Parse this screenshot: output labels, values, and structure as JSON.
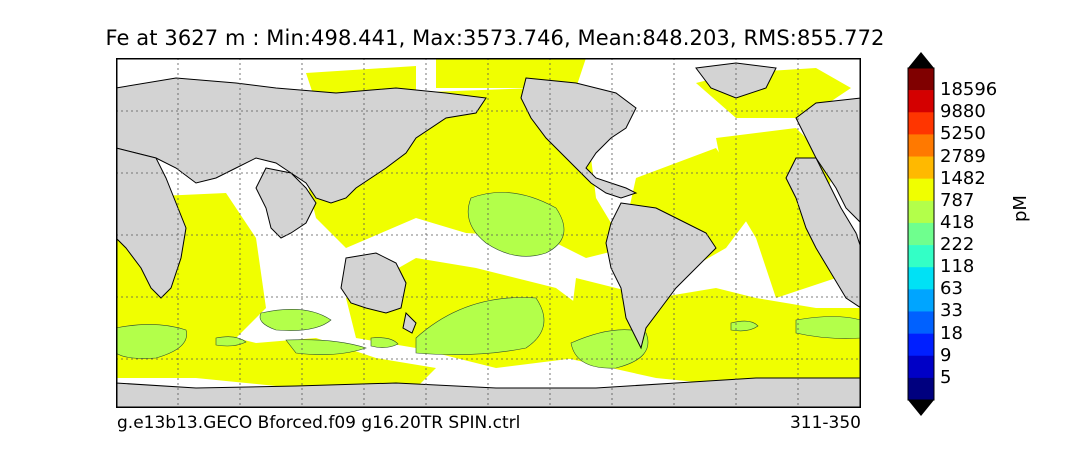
{
  "title": "Fe at 3627 m : Min:498.441, Max:3573.746, Mean:848.203, RMS:855.772",
  "footer": {
    "run_name": "g.e13b13.GECO Bforced.f09 g16.20TR SPIN.ctrl",
    "years": "311-350"
  },
  "colorbar": {
    "units": "pM",
    "levels": [
      "18596",
      "9880",
      "5250",
      "2789",
      "1482",
      "787",
      "418",
      "222",
      "118",
      "63",
      "33",
      "18",
      "9",
      "5"
    ],
    "colors": [
      "#800000",
      "#d40000",
      "#ff3500",
      "#ff7900",
      "#ffb900",
      "#f0ff00",
      "#b3ff4a",
      "#6fff8e",
      "#33ffc6",
      "#00e1f5",
      "#00a5ff",
      "#0061ff",
      "#001fff",
      "#0000c6",
      "#00007f"
    ],
    "extend_max_color": "#000000",
    "extend_min_color": "#000000"
  },
  "map": {
    "land_color": "#d3d3d3",
    "ocean_nodata_color": "#ffffff",
    "dominant_field_color": "#f0ff00",
    "low_patch_color": "#b3ff4a",
    "gridlines": "dotted"
  }
}
